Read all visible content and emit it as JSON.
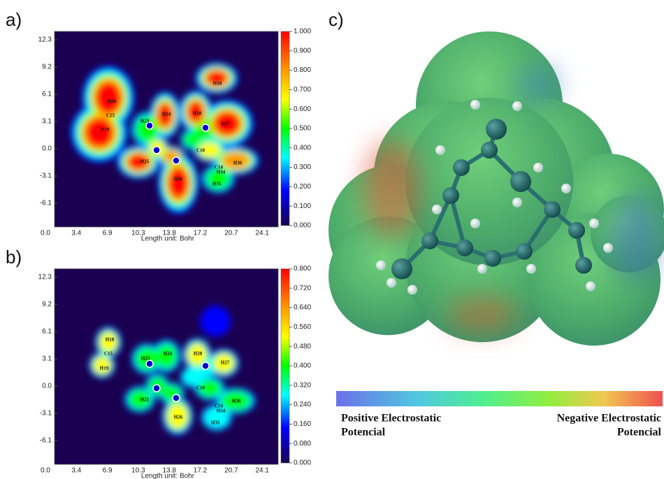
{
  "panels": [
    {
      "label": "a)",
      "yticks": [
        "12.3",
        "9.2",
        "6.1",
        "3.1",
        "0.0",
        "-3.1",
        "-6.1"
      ],
      "xticks": [
        "0.0",
        "3.4",
        "6.9",
        "10.3",
        "13.8",
        "17.2",
        "20.7",
        "24.1"
      ],
      "xlabel": "Length unit: Bohr",
      "colorbar": [
        "1.000",
        "0.900",
        "0.800",
        "0.700",
        "0.600",
        "0.500",
        "0.400",
        "0.300",
        "0.200",
        "0.100",
        "0.000"
      ],
      "atoms": [
        "H18",
        "H30",
        "C15",
        "H19",
        "H23",
        "H24",
        "H28",
        "H27",
        "C10",
        "H25",
        "H26",
        "H36",
        "H34",
        "C14",
        "H35"
      ]
    },
    {
      "label": "b)",
      "yticks": [
        "12.3",
        "9.2",
        "6.1",
        "3.1",
        "0.0",
        "-3.1",
        "-6.1"
      ],
      "xticks": [
        "0.0",
        "3.4",
        "6.9",
        "10.3",
        "13.8",
        "17.2",
        "20.7",
        "24.1"
      ],
      "xlabel": "Length unit: Bohr",
      "colorbar": [
        "0.800",
        "0.720",
        "0.640",
        "0.560",
        "0.480",
        "0.400",
        "0.320",
        "0.240",
        "0.160",
        "0.080",
        "0.000"
      ],
      "atoms": [
        "H18",
        "C15",
        "H19",
        "H23",
        "H24",
        "H28",
        "H27",
        "C10",
        "H25",
        "H26",
        "H36",
        "H34",
        "C14",
        "H35"
      ]
    }
  ],
  "panel_c": {
    "label": "c)",
    "scale_left": [
      "Positive Electrostatic",
      "Potencial"
    ],
    "scale_right": [
      "Negative Electrostatic",
      "Potencial"
    ]
  }
}
